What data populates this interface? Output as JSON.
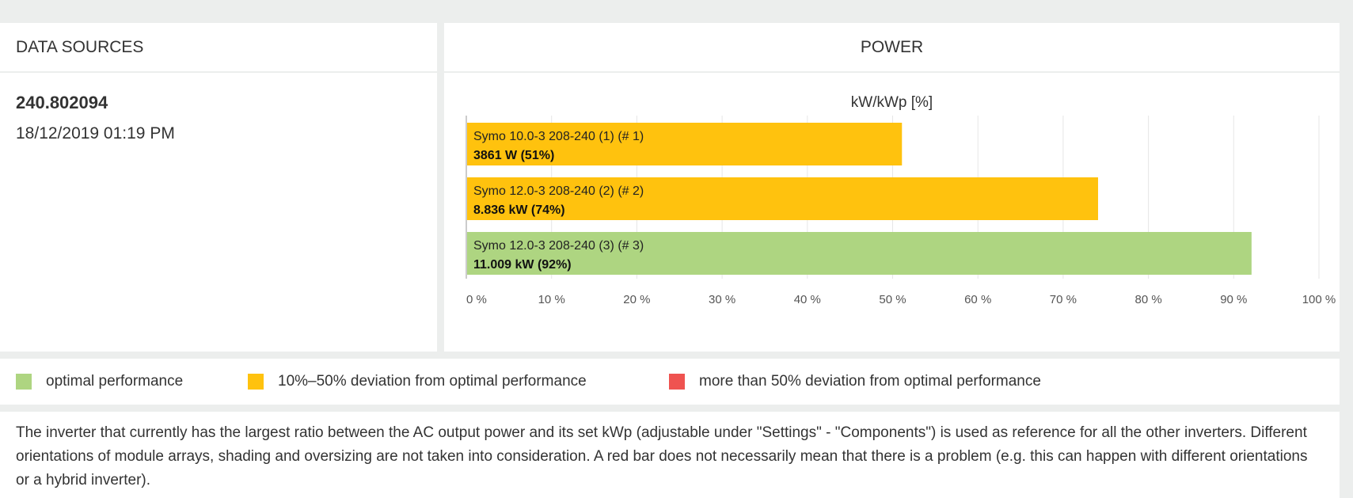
{
  "data_sources": {
    "header": "DATA SOURCES",
    "value": "240.802094",
    "timestamp": "18/12/2019 01:19 PM"
  },
  "power": {
    "header": "POWER",
    "unit_label": "kW/kWp [%]"
  },
  "chart_data": {
    "type": "bar",
    "orientation": "horizontal",
    "title": "kW/kWp [%]",
    "xlim": [
      0,
      100
    ],
    "x_ticks": [
      "0 %",
      "10 %",
      "20 %",
      "30 %",
      "40 %",
      "50 %",
      "60 %",
      "70 %",
      "80 %",
      "90 %",
      "100 %"
    ],
    "grid": true,
    "bars": [
      {
        "name": "Symo 10.0-3 208-240 (1) (# 1)",
        "label": "3861 W (51%)",
        "value": 51,
        "color": "#ffc20e"
      },
      {
        "name": "Symo 12.0-3 208-240 (2) (# 2)",
        "label": "8.836 kW (74%)",
        "value": 74,
        "color": "#ffc20e"
      },
      {
        "name": "Symo 12.0-3 208-240 (3) (# 3)",
        "label": "11.009 kW (92%)",
        "value": 92,
        "color": "#aed581"
      }
    ]
  },
  "legend": {
    "items": [
      {
        "label": "optimal performance",
        "color": "#aed581"
      },
      {
        "label": "10%–50% deviation from optimal performance",
        "color": "#ffc20e"
      },
      {
        "label": "more than 50% deviation from optimal performance",
        "color": "#ef5350"
      }
    ]
  },
  "note": {
    "text": "The inverter that currently has the largest ratio between the AC output power and its set kWp (adjustable under \"Settings\" - \"Components\") is used as reference for all the other inverters. Different orientations of module arrays, shading and oversizing are not taken into consideration. A red bar does not necessarily mean that there is a problem (e.g. this can happen with different orientations or a hybrid inverter)."
  }
}
